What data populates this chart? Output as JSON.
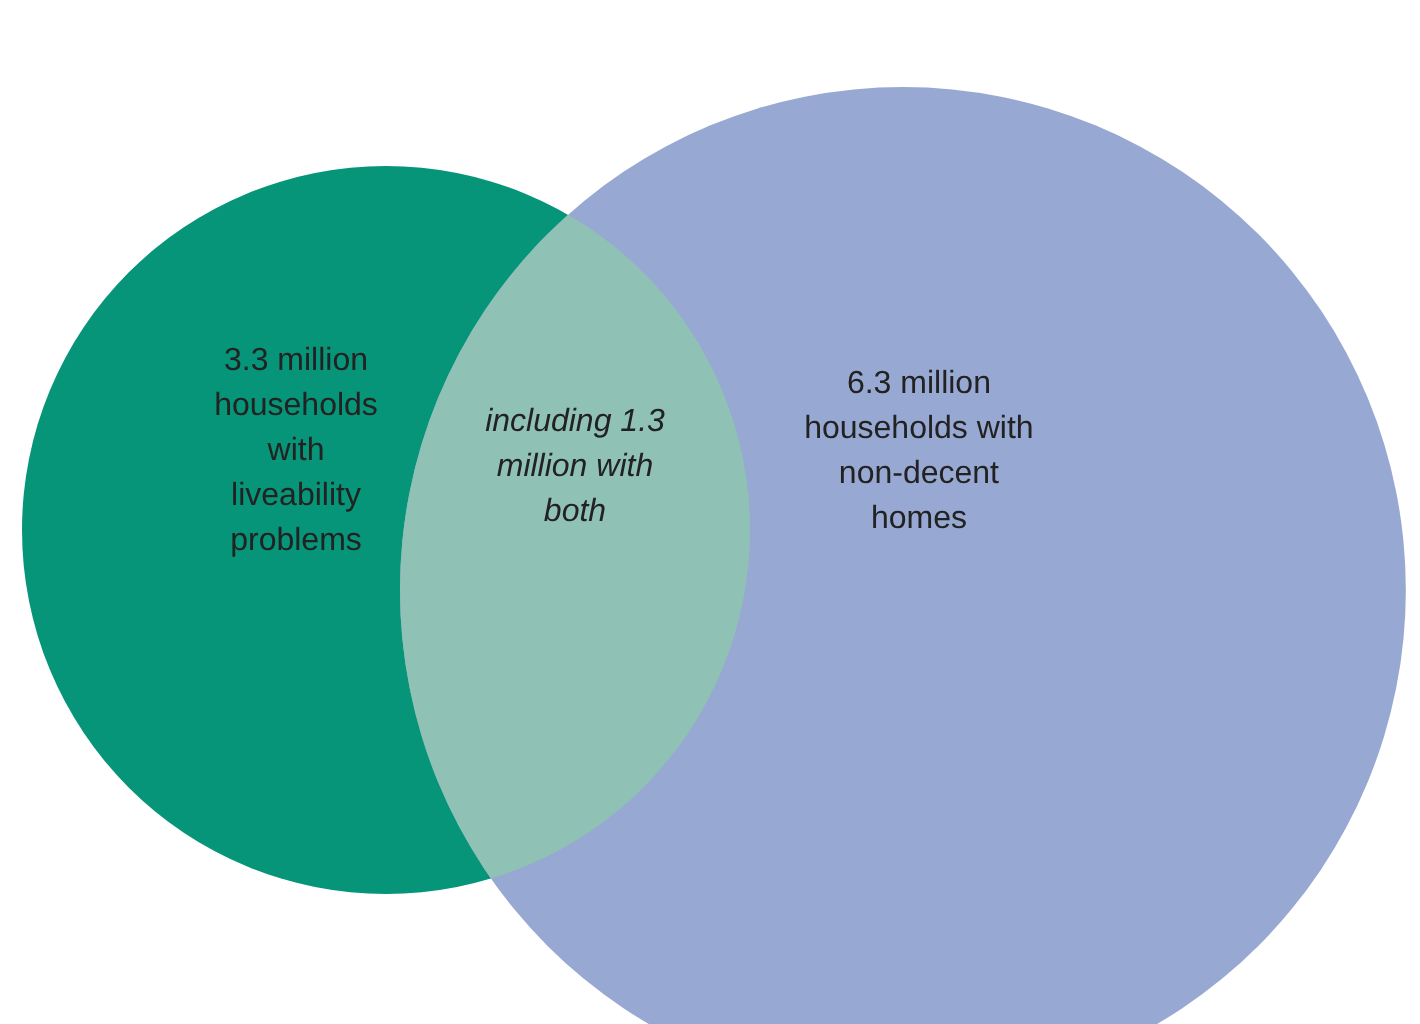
{
  "chart_data": {
    "type": "other",
    "categories": [
      "households with liveability problems",
      "households with non-decent homes",
      "with both"
    ],
    "values": [
      3.3,
      6.3,
      1.3
    ],
    "value_labels": [
      "3.3 million",
      "6.3 million",
      "1.3 million"
    ],
    "annotations": [
      "including"
    ],
    "colors": [
      "#069579",
      "#97a8d3",
      "#8fc1b5"
    ]
  }
}
